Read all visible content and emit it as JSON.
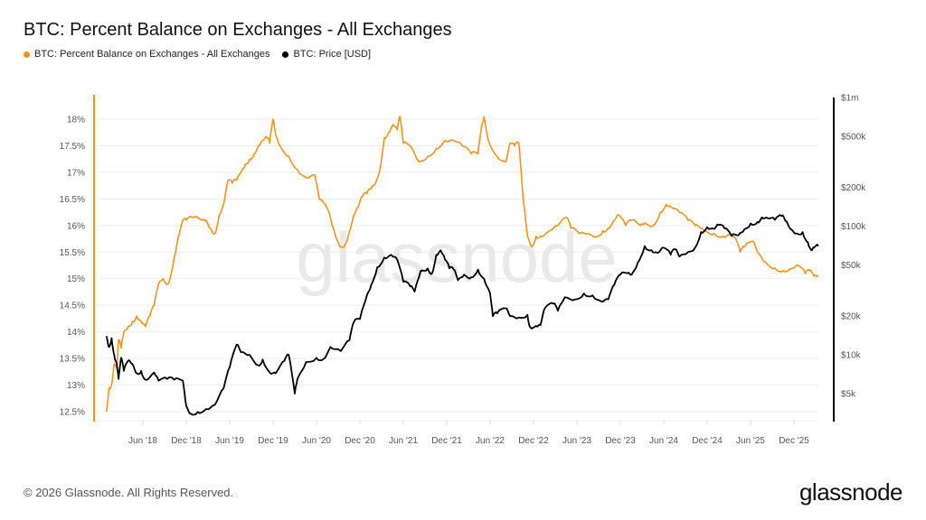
{
  "title": "BTC: Percent Balance on Exchanges - All Exchanges",
  "legend": [
    {
      "label": "BTC: Percent Balance on Exchanges - All Exchanges",
      "color": "#f7931a"
    },
    {
      "label": "BTC: Price [USD]",
      "color": "#000000"
    }
  ],
  "footer": {
    "copyright": "© 2026 Glassnode. All Rights Reserved.",
    "logo": "glassnode"
  },
  "watermark": "glassnode",
  "chart_data": {
    "type": "line",
    "title": "BTC: Percent Balance on Exchanges - All Exchanges",
    "xlabel": "",
    "ylabel_left": "",
    "ylabel_right": "",
    "x_range": [
      2018.0,
      2026.25
    ],
    "x_ticks": [
      {
        "label": "Jun '18",
        "value": 2018.42
      },
      {
        "label": "Dec '18",
        "value": 2018.92
      },
      {
        "label": "Jun '19",
        "value": 2019.42
      },
      {
        "label": "Dec '19",
        "value": 2019.92
      },
      {
        "label": "Jun '20",
        "value": 2020.42
      },
      {
        "label": "Dec '20",
        "value": 2020.92
      },
      {
        "label": "Jun '21",
        "value": 2021.42
      },
      {
        "label": "Dec '21",
        "value": 2021.92
      },
      {
        "label": "Jun '22",
        "value": 2022.42
      },
      {
        "label": "Dec '22",
        "value": 2022.92
      },
      {
        "label": "Jun '23",
        "value": 2023.42
      },
      {
        "label": "Dec '23",
        "value": 2023.92
      },
      {
        "label": "Jun '24",
        "value": 2024.42
      },
      {
        "label": "Dec '24",
        "value": 2024.92
      },
      {
        "label": "Jun '25",
        "value": 2025.42
      },
      {
        "label": "Dec '25",
        "value": 2025.92
      }
    ],
    "y_left": {
      "scale": "linear",
      "range": [
        12.45,
        18.45
      ],
      "ticks": [
        {
          "label": "12.5%",
          "value": 12.5
        },
        {
          "label": "13%",
          "value": 13
        },
        {
          "label": "13.5%",
          "value": 13.5
        },
        {
          "label": "14%",
          "value": 14
        },
        {
          "label": "14.5%",
          "value": 14.5
        },
        {
          "label": "15%",
          "value": 15
        },
        {
          "label": "15.5%",
          "value": 15.5
        },
        {
          "label": "16%",
          "value": 16
        },
        {
          "label": "16.5%",
          "value": 16.5
        },
        {
          "label": "17%",
          "value": 17
        },
        {
          "label": "17.5%",
          "value": 17.5
        },
        {
          "label": "18%",
          "value": 18
        }
      ]
    },
    "y_right": {
      "scale": "log",
      "range": [
        3200,
        1000000
      ],
      "ticks": [
        {
          "label": "$5k",
          "value": 5000
        },
        {
          "label": "$10k",
          "value": 10000
        },
        {
          "label": "$20k",
          "value": 20000
        },
        {
          "label": "$50k",
          "value": 50000
        },
        {
          "label": "$100k",
          "value": 100000
        },
        {
          "label": "$200k",
          "value": 200000
        },
        {
          "label": "$500k",
          "value": 500000
        },
        {
          "label": "$1m",
          "value": 1000000
        }
      ]
    },
    "grid": true,
    "legend_position": "top-left",
    "series": [
      {
        "name": "BTC: Percent Balance on Exchanges - All Exchanges",
        "axis": "left",
        "color": "#f7931a",
        "points": [
          [
            2018.0,
            12.5
          ],
          [
            2018.03,
            12.95
          ],
          [
            2018.06,
            13.0
          ],
          [
            2018.09,
            13.4
          ],
          [
            2018.12,
            13.3
          ],
          [
            2018.14,
            13.85
          ],
          [
            2018.17,
            13.7
          ],
          [
            2018.2,
            14.0
          ],
          [
            2018.25,
            14.1
          ],
          [
            2018.3,
            14.2
          ],
          [
            2018.35,
            14.3
          ],
          [
            2018.4,
            14.2
          ],
          [
            2018.45,
            14.1
          ],
          [
            2018.5,
            14.3
          ],
          [
            2018.55,
            14.5
          ],
          [
            2018.6,
            14.9
          ],
          [
            2018.65,
            15.0
          ],
          [
            2018.7,
            14.9
          ],
          [
            2018.73,
            15.0
          ],
          [
            2018.78,
            15.4
          ],
          [
            2018.83,
            15.8
          ],
          [
            2018.88,
            16.1
          ],
          [
            2018.92,
            16.1
          ],
          [
            2019.0,
            16.15
          ],
          [
            2019.1,
            16.1
          ],
          [
            2019.15,
            16.1
          ],
          [
            2019.2,
            15.95
          ],
          [
            2019.25,
            15.85
          ],
          [
            2019.3,
            16.2
          ],
          [
            2019.35,
            16.4
          ],
          [
            2019.4,
            16.85
          ],
          [
            2019.45,
            16.8
          ],
          [
            2019.5,
            16.85
          ],
          [
            2019.55,
            17.0
          ],
          [
            2019.6,
            17.15
          ],
          [
            2019.65,
            17.25
          ],
          [
            2019.7,
            17.35
          ],
          [
            2019.75,
            17.5
          ],
          [
            2019.8,
            17.6
          ],
          [
            2019.85,
            17.65
          ],
          [
            2019.88,
            17.55
          ],
          [
            2019.92,
            18.0
          ],
          [
            2019.95,
            17.7
          ],
          [
            2020.0,
            17.5
          ],
          [
            2020.1,
            17.3
          ],
          [
            2020.2,
            17.05
          ],
          [
            2020.3,
            16.9
          ],
          [
            2020.4,
            16.95
          ],
          [
            2020.45,
            16.5
          ],
          [
            2020.55,
            16.3
          ],
          [
            2020.6,
            16.0
          ],
          [
            2020.65,
            15.75
          ],
          [
            2020.7,
            15.6
          ],
          [
            2020.75,
            15.65
          ],
          [
            2020.8,
            15.9
          ],
          [
            2020.85,
            16.2
          ],
          [
            2020.9,
            16.35
          ],
          [
            2020.95,
            16.55
          ],
          [
            2021.0,
            16.6
          ],
          [
            2021.05,
            16.7
          ],
          [
            2021.1,
            16.8
          ],
          [
            2021.15,
            17.05
          ],
          [
            2021.2,
            17.65
          ],
          [
            2021.25,
            17.75
          ],
          [
            2021.3,
            17.9
          ],
          [
            2021.35,
            17.8
          ],
          [
            2021.38,
            18.05
          ],
          [
            2021.42,
            17.55
          ],
          [
            2021.5,
            17.5
          ],
          [
            2021.6,
            17.2
          ],
          [
            2021.7,
            17.3
          ],
          [
            2021.8,
            17.45
          ],
          [
            2021.9,
            17.6
          ],
          [
            2022.0,
            17.6
          ],
          [
            2022.1,
            17.5
          ],
          [
            2022.2,
            17.35
          ],
          [
            2022.28,
            17.35
          ],
          [
            2022.32,
            17.85
          ],
          [
            2022.35,
            18.05
          ],
          [
            2022.4,
            17.6
          ],
          [
            2022.5,
            17.3
          ],
          [
            2022.6,
            17.2
          ],
          [
            2022.65,
            17.55
          ],
          [
            2022.7,
            17.5
          ],
          [
            2022.75,
            17.55
          ],
          [
            2022.8,
            16.5
          ],
          [
            2022.85,
            15.8
          ],
          [
            2022.9,
            15.6
          ],
          [
            2022.95,
            15.8
          ],
          [
            2023.0,
            15.8
          ],
          [
            2023.1,
            15.9
          ],
          [
            2023.2,
            16.0
          ],
          [
            2023.3,
            16.15
          ],
          [
            2023.35,
            15.95
          ],
          [
            2023.45,
            15.85
          ],
          [
            2023.55,
            15.85
          ],
          [
            2023.65,
            15.8
          ],
          [
            2023.72,
            15.9
          ],
          [
            2023.78,
            15.95
          ],
          [
            2023.85,
            16.1
          ],
          [
            2023.9,
            16.2
          ],
          [
            2023.98,
            16.0
          ],
          [
            2024.05,
            16.1
          ],
          [
            2024.15,
            16.0
          ],
          [
            2024.2,
            16.05
          ],
          [
            2024.3,
            16.0
          ],
          [
            2024.38,
            16.25
          ],
          [
            2024.45,
            16.4
          ],
          [
            2024.5,
            16.35
          ],
          [
            2024.6,
            16.25
          ],
          [
            2024.7,
            16.1
          ],
          [
            2024.78,
            16.0
          ],
          [
            2024.85,
            15.95
          ],
          [
            2024.9,
            15.9
          ],
          [
            2025.0,
            15.85
          ],
          [
            2025.1,
            15.8
          ],
          [
            2025.18,
            15.85
          ],
          [
            2025.25,
            15.75
          ],
          [
            2025.3,
            15.5
          ],
          [
            2025.35,
            15.6
          ],
          [
            2025.45,
            15.7
          ],
          [
            2025.5,
            15.5
          ],
          [
            2025.6,
            15.3
          ],
          [
            2025.7,
            15.2
          ],
          [
            2025.8,
            15.15
          ],
          [
            2025.9,
            15.2
          ],
          [
            2025.97,
            15.25
          ],
          [
            2026.05,
            15.1
          ],
          [
            2026.1,
            15.15
          ],
          [
            2026.15,
            15.05
          ],
          [
            2026.2,
            15.05
          ]
        ]
      },
      {
        "name": "BTC: Price [USD]",
        "axis": "right",
        "color": "#000000",
        "points": [
          [
            2018.0,
            14000
          ],
          [
            2018.03,
            11500
          ],
          [
            2018.06,
            13500
          ],
          [
            2018.09,
            10000
          ],
          [
            2018.12,
            8500
          ],
          [
            2018.14,
            6500
          ],
          [
            2018.17,
            9500
          ],
          [
            2018.2,
            7500
          ],
          [
            2018.25,
            9000
          ],
          [
            2018.3,
            8500
          ],
          [
            2018.35,
            7200
          ],
          [
            2018.4,
            7500
          ],
          [
            2018.45,
            6400
          ],
          [
            2018.55,
            7300
          ],
          [
            2018.6,
            6300
          ],
          [
            2018.7,
            6500
          ],
          [
            2018.78,
            6400
          ],
          [
            2018.88,
            6300
          ],
          [
            2018.92,
            4000
          ],
          [
            2018.97,
            3500
          ],
          [
            2019.05,
            3600
          ],
          [
            2019.15,
            3800
          ],
          [
            2019.25,
            4100
          ],
          [
            2019.35,
            5500
          ],
          [
            2019.42,
            8000
          ],
          [
            2019.5,
            12000
          ],
          [
            2019.55,
            10500
          ],
          [
            2019.65,
            10000
          ],
          [
            2019.75,
            8300
          ],
          [
            2019.8,
            9200
          ],
          [
            2019.88,
            7300
          ],
          [
            2019.95,
            7200
          ],
          [
            2020.05,
            9000
          ],
          [
            2020.1,
            10000
          ],
          [
            2020.17,
            5000
          ],
          [
            2020.2,
            6500
          ],
          [
            2020.3,
            8800
          ],
          [
            2020.42,
            9500
          ],
          [
            2020.5,
            9300
          ],
          [
            2020.58,
            11500
          ],
          [
            2020.7,
            10700
          ],
          [
            2020.8,
            13000
          ],
          [
            2020.85,
            18000
          ],
          [
            2020.92,
            19000
          ],
          [
            2021.0,
            29000
          ],
          [
            2021.05,
            35000
          ],
          [
            2021.12,
            48000
          ],
          [
            2021.2,
            57000
          ],
          [
            2021.28,
            60000
          ],
          [
            2021.35,
            55000
          ],
          [
            2021.42,
            37000
          ],
          [
            2021.5,
            34000
          ],
          [
            2021.55,
            31000
          ],
          [
            2021.62,
            45000
          ],
          [
            2021.7,
            47000
          ],
          [
            2021.75,
            43000
          ],
          [
            2021.8,
            60000
          ],
          [
            2021.85,
            65000
          ],
          [
            2021.9,
            55000
          ],
          [
            2021.95,
            47000
          ],
          [
            2022.0,
            46000
          ],
          [
            2022.05,
            38000
          ],
          [
            2022.12,
            42000
          ],
          [
            2022.2,
            40000
          ],
          [
            2022.28,
            46000
          ],
          [
            2022.35,
            39000
          ],
          [
            2022.42,
            30000
          ],
          [
            2022.45,
            20000
          ],
          [
            2022.5,
            21000
          ],
          [
            2022.6,
            23000
          ],
          [
            2022.65,
            20000
          ],
          [
            2022.75,
            19500
          ],
          [
            2022.85,
            20500
          ],
          [
            2022.88,
            16500
          ],
          [
            2022.95,
            16800
          ],
          [
            2023.0,
            17000
          ],
          [
            2023.05,
            23000
          ],
          [
            2023.15,
            25000
          ],
          [
            2023.2,
            22000
          ],
          [
            2023.28,
            28000
          ],
          [
            2023.4,
            27000
          ],
          [
            2023.5,
            30000
          ],
          [
            2023.6,
            29000
          ],
          [
            2023.7,
            26000
          ],
          [
            2023.78,
            27000
          ],
          [
            2023.85,
            35000
          ],
          [
            2023.92,
            42000
          ],
          [
            2024.0,
            43000
          ],
          [
            2024.05,
            42000
          ],
          [
            2024.12,
            52000
          ],
          [
            2024.2,
            70000
          ],
          [
            2024.28,
            65000
          ],
          [
            2024.35,
            62000
          ],
          [
            2024.42,
            68000
          ],
          [
            2024.5,
            60000
          ],
          [
            2024.55,
            66000
          ],
          [
            2024.6,
            58000
          ],
          [
            2024.7,
            63000
          ],
          [
            2024.78,
            68000
          ],
          [
            2024.85,
            90000
          ],
          [
            2024.92,
            98000
          ],
          [
            2025.0,
            95000
          ],
          [
            2025.05,
            102000
          ],
          [
            2025.12,
            96000
          ],
          [
            2025.2,
            84000
          ],
          [
            2025.28,
            85000
          ],
          [
            2025.35,
            95000
          ],
          [
            2025.42,
            105000
          ],
          [
            2025.5,
            108000
          ],
          [
            2025.55,
            117000
          ],
          [
            2025.62,
            115000
          ],
          [
            2025.7,
            112000
          ],
          [
            2025.78,
            120000
          ],
          [
            2025.82,
            110000
          ],
          [
            2025.88,
            95000
          ],
          [
            2025.95,
            88000
          ],
          [
            2026.02,
            90000
          ],
          [
            2026.08,
            75000
          ],
          [
            2026.12,
            65000
          ],
          [
            2026.15,
            68000
          ],
          [
            2026.2,
            70000
          ]
        ]
      }
    ]
  }
}
